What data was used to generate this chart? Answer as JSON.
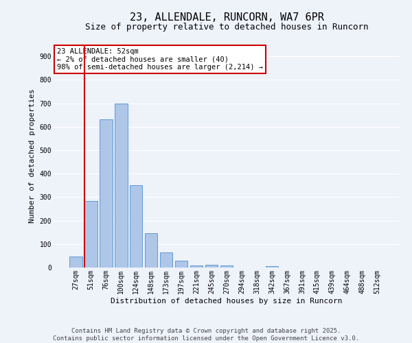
{
  "title": "23, ALLENDALE, RUNCORN, WA7 6PR",
  "subtitle": "Size of property relative to detached houses in Runcorn",
  "xlabel": "Distribution of detached houses by size in Runcorn",
  "ylabel": "Number of detached properties",
  "categories": [
    "27sqm",
    "51sqm",
    "76sqm",
    "100sqm",
    "124sqm",
    "148sqm",
    "173sqm",
    "197sqm",
    "221sqm",
    "245sqm",
    "270sqm",
    "294sqm",
    "318sqm",
    "342sqm",
    "367sqm",
    "391sqm",
    "415sqm",
    "439sqm",
    "464sqm",
    "488sqm",
    "512sqm"
  ],
  "values": [
    47,
    285,
    630,
    700,
    350,
    145,
    65,
    30,
    10,
    12,
    10,
    0,
    0,
    5,
    0,
    0,
    0,
    0,
    0,
    0,
    0
  ],
  "bar_color": "#aec6e8",
  "bar_edge_color": "#5b9bd5",
  "background_color": "#eef2f9",
  "grid_color": "#ffffff",
  "vline_color": "#cc0000",
  "vline_x_index": 0.6,
  "annotation_text": "23 ALLENDALE: 52sqm\n← 2% of detached houses are smaller (40)\n98% of semi-detached houses are larger (2,214) →",
  "annotation_box_color": "#ffffff",
  "annotation_box_edge": "#cc0000",
  "ylim": [
    0,
    950
  ],
  "yticks": [
    0,
    100,
    200,
    300,
    400,
    500,
    600,
    700,
    800,
    900
  ],
  "footer_text": "Contains HM Land Registry data © Crown copyright and database right 2025.\nContains public sector information licensed under the Open Government Licence v3.0.",
  "title_fontsize": 11,
  "subtitle_fontsize": 9,
  "xlabel_fontsize": 8,
  "ylabel_fontsize": 8,
  "tick_fontsize": 7,
  "annotation_fontsize": 7.5,
  "footer_fontsize": 6.5
}
